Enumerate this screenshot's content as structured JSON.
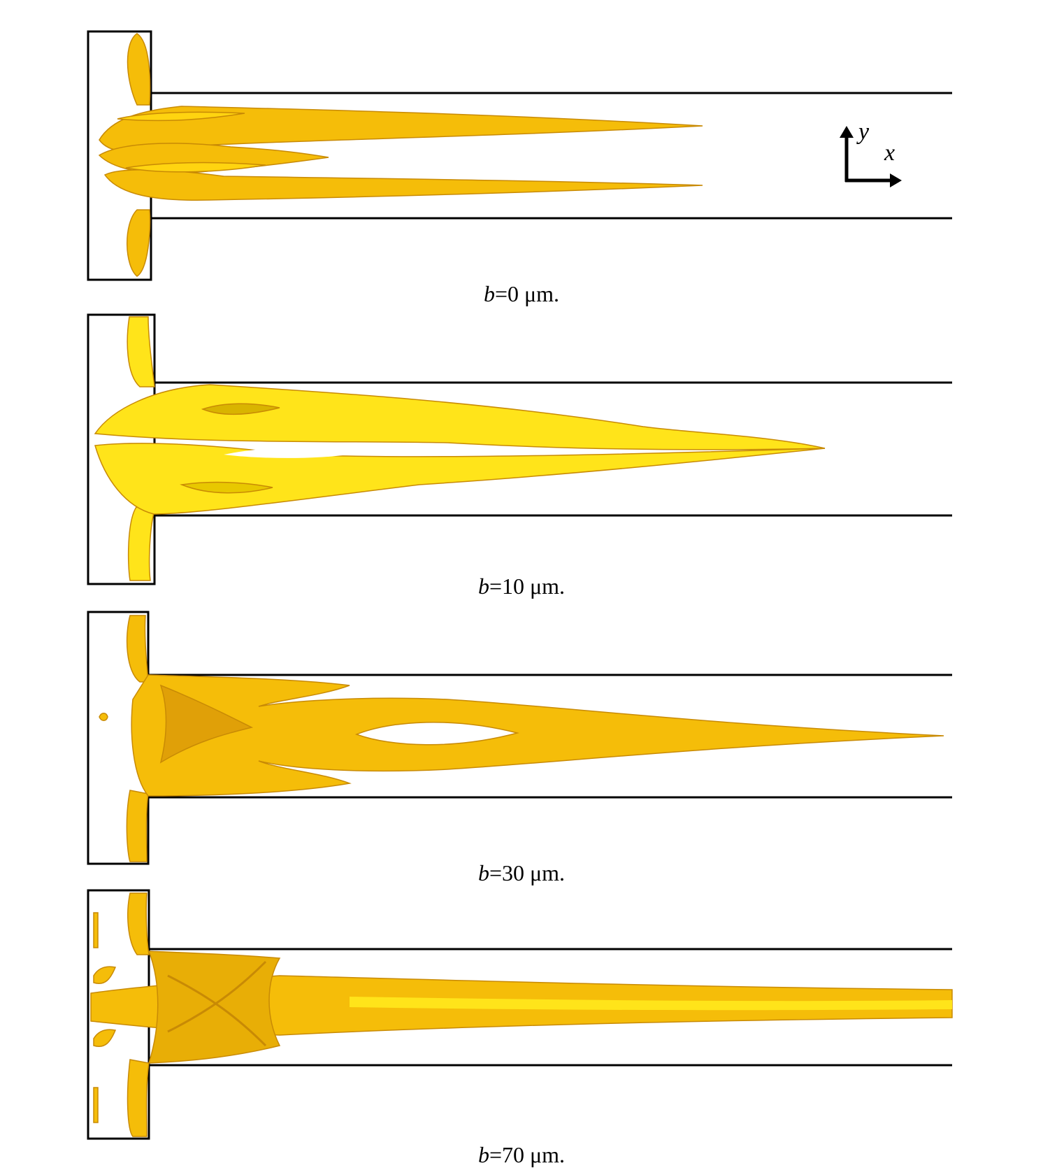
{
  "axes_indicator": {
    "y_label": "y",
    "x_label": "x"
  },
  "panels": [
    {
      "variable": "b",
      "value_text": "=0 μm."
    },
    {
      "variable": "b",
      "value_text": "=10 μm."
    },
    {
      "variable": "b",
      "value_text": "=30 μm."
    },
    {
      "variable": "b",
      "value_text": "=70 μm."
    }
  ],
  "colors": {
    "fluid_main": "#F5BD09",
    "fluid_light": "#FFE41A",
    "fluid_shade": "#C88A05",
    "outline": "#000000"
  }
}
